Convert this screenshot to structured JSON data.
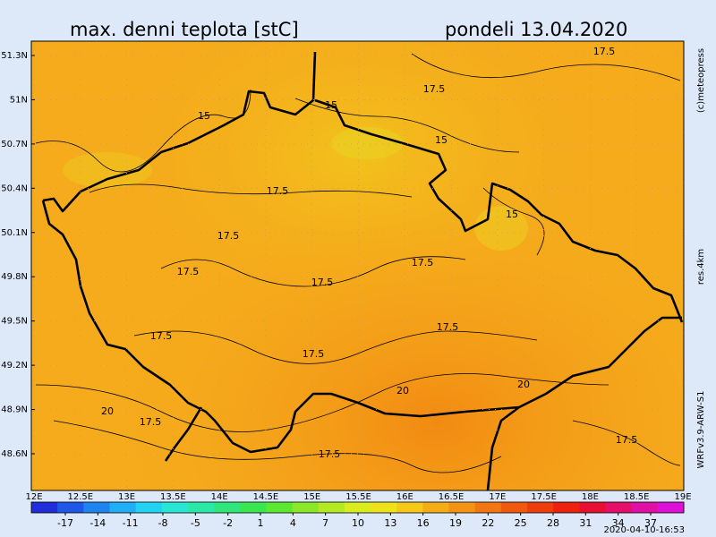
{
  "header": {
    "title": "max. denni teplota [stC]",
    "date": "pondeli 13.04.2020"
  },
  "map": {
    "lat_ticks": [
      {
        "value": 51.3,
        "label": "51.3N"
      },
      {
        "value": 51.0,
        "label": "51N"
      },
      {
        "value": 50.7,
        "label": "50.7N"
      },
      {
        "value": 50.4,
        "label": "50.4N"
      },
      {
        "value": 50.1,
        "label": "50.1N"
      },
      {
        "value": 49.8,
        "label": "49.8N"
      },
      {
        "value": 49.5,
        "label": "49.5N"
      },
      {
        "value": 49.2,
        "label": "49.2N"
      },
      {
        "value": 48.9,
        "label": "48.9N"
      },
      {
        "value": 48.6,
        "label": "48.6N"
      }
    ],
    "lon_ticks": [
      {
        "value": 12,
        "label": "12E"
      },
      {
        "value": 12.5,
        "label": "12.5E"
      },
      {
        "value": 13,
        "label": "13E"
      },
      {
        "value": 13.5,
        "label": "13.5E"
      },
      {
        "value": 14,
        "label": "14E"
      },
      {
        "value": 14.5,
        "label": "14.5E"
      },
      {
        "value": 15,
        "label": "15E"
      },
      {
        "value": 15.5,
        "label": "15.5E"
      },
      {
        "value": 16,
        "label": "16E"
      },
      {
        "value": 16.5,
        "label": "16.5E"
      },
      {
        "value": 17,
        "label": "17E"
      },
      {
        "value": 17.5,
        "label": "17.5E"
      },
      {
        "value": 18,
        "label": "18E"
      },
      {
        "value": 18.5,
        "label": "18.5E"
      },
      {
        "value": 19,
        "label": "19E"
      }
    ],
    "contour_labels": [
      "17.5",
      "17.5",
      "15",
      "15",
      "15",
      "15",
      "17.5",
      "17.5",
      "17.5",
      "17.5",
      "17.5",
      "17.5",
      "17.5",
      "17.5",
      "20",
      "20",
      "17.5",
      "20",
      "17.5",
      "17.5"
    ]
  },
  "colorbar": {
    "ticks": [
      -17,
      -14,
      -11,
      -8,
      -5,
      -2,
      1,
      4,
      7,
      10,
      13,
      16,
      19,
      22,
      25,
      28,
      31,
      34,
      37
    ],
    "colors": [
      "#1f2ddb",
      "#1f58e8",
      "#1f84f0",
      "#20aef5",
      "#22d2f2",
      "#28e6d2",
      "#2ce8a6",
      "#30e67a",
      "#3ae650",
      "#5ce830",
      "#8ae828",
      "#b4ea22",
      "#d8ec1e",
      "#f0e21a",
      "#f6c818",
      "#f5ad16",
      "#f49214",
      "#f27612",
      "#f05a10",
      "#ee3e0e",
      "#ec220e",
      "#e81030",
      "#e4106a",
      "#e010a4",
      "#dc10d8"
    ]
  },
  "side": {
    "copyright": "(c)meteopress",
    "resolution": "res.4km",
    "model": "WRFv3.9-ARW-S1",
    "timestamp": "2020-04-10-16:53"
  }
}
